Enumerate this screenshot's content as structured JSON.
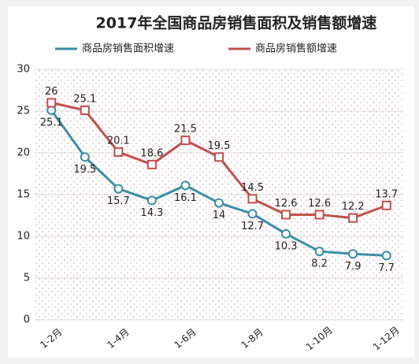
{
  "chart_data": {
    "type": "line",
    "title": "2017年全国商品房销售面积及销售额增速",
    "categories": [
      "1-2月",
      null,
      "1-4月",
      null,
      "1-6月",
      null,
      "1-8月",
      null,
      "1-10月",
      null,
      "1-12月"
    ],
    "series": [
      {
        "name": "商品房销售面积增速",
        "color": "#3a8ea5",
        "marker": "circle",
        "values": [
          25.1,
          19.5,
          15.7,
          14.3,
          16.1,
          14.0,
          12.7,
          10.3,
          8.2,
          7.9,
          7.7
        ]
      },
      {
        "name": "商品房销售额增速",
        "color": "#c0504d",
        "marker": "square",
        "values": [
          26,
          25.1,
          20.1,
          18.6,
          21.5,
          19.5,
          14.5,
          12.6,
          12.6,
          12.2,
          13.7
        ]
      }
    ],
    "ylim": [
      0,
      30
    ],
    "yticks": [
      0,
      5,
      10,
      15,
      20,
      25,
      30
    ],
    "grid": true,
    "legend": "top"
  }
}
